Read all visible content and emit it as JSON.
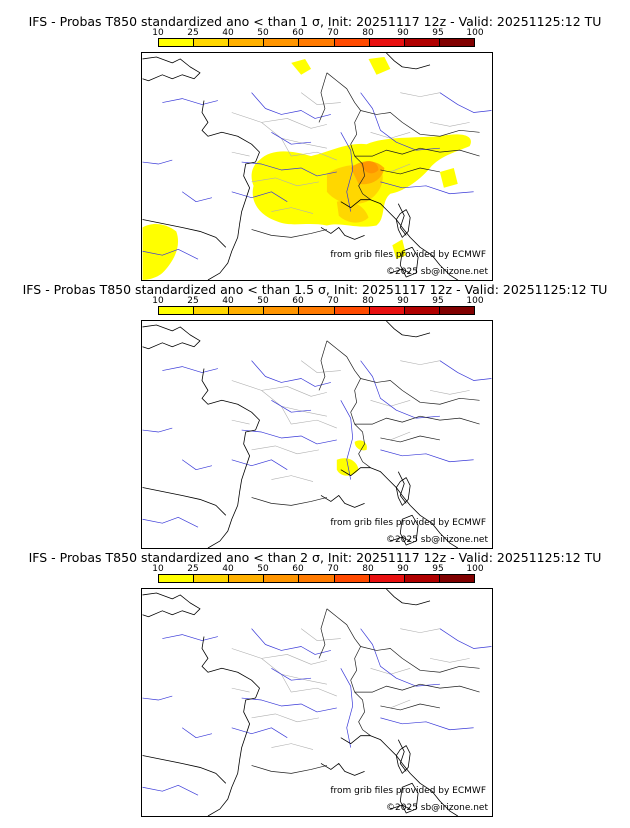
{
  "panels": [
    {
      "title": "IFS - Probas T850  standardized ano < than 1 σ, Init: 20251117 12z - Valid: 20251125:12 TU",
      "shading": "high"
    },
    {
      "title": "IFS - Probas T850  standardized ano < than 1.5 σ, Init: 20251117 12z - Valid: 20251125:12 TU",
      "shading": "low"
    },
    {
      "title": "IFS - Probas T850  standardized ano < than 2 σ, Init: 20251117 12z - Valid: 20251125:12 TU",
      "shading": "none"
    }
  ],
  "colorbar": {
    "labels": [
      "10",
      "25",
      "40",
      "50",
      "60",
      "70",
      "80",
      "90",
      "95",
      "100"
    ],
    "colors": [
      "#ffff00",
      "#ffd700",
      "#ffb000",
      "#ff9500",
      "#ff7a00",
      "#ff4a00",
      "#e81010",
      "#b00000",
      "#800000"
    ]
  },
  "credits": {
    "source": "from grib files provided by ECMWF",
    "copyright": "©2025 sb@irizone.net"
  }
}
